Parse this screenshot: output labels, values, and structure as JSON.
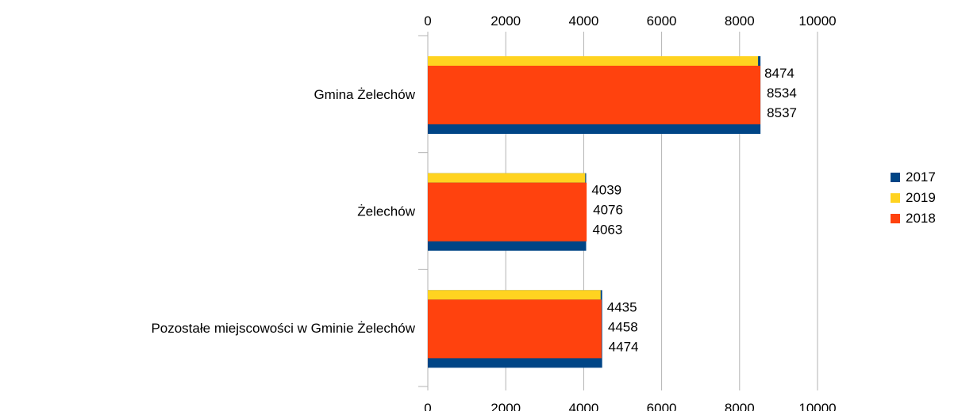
{
  "chart_data": {
    "type": "bar",
    "orientation": "horizontal",
    "categories": [
      "Gmina Żelechów",
      "Żelechów",
      "Pozostałe miejscowości w Gminie Żelechów"
    ],
    "series": [
      {
        "name": "2017",
        "values": [
          8537,
          4063,
          4474
        ],
        "color": "#004586"
      },
      {
        "name": "2019",
        "values": [
          8474,
          4039,
          4435
        ],
        "color": "#ffd320"
      },
      {
        "name": "2018",
        "values": [
          8534,
          4076,
          4458
        ],
        "color": "#ff420e"
      }
    ],
    "xlim": [
      0,
      10000
    ],
    "xticks": [
      "0",
      "2000",
      "4000",
      "6000",
      "8000",
      "10000"
    ],
    "grid": true,
    "legend": "right"
  }
}
